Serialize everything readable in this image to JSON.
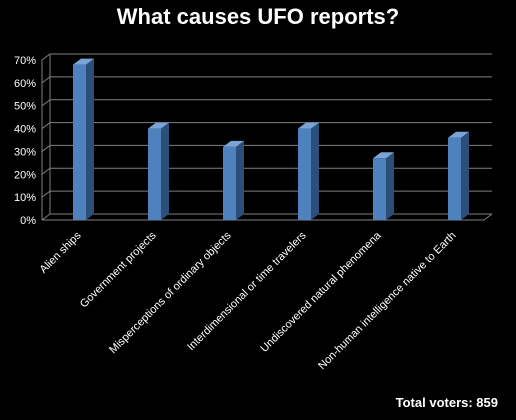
{
  "chart_data": {
    "type": "bar",
    "title": "What causes UFO reports?",
    "categories": [
      "Alien ships",
      "Government projects",
      "Misperceptions of ordinary objects",
      "Interdimensional or time travelers",
      "Undiscovered natural phenomena",
      "Non-human intelligence native to Earth"
    ],
    "values": [
      68,
      40,
      32,
      40,
      27,
      36
    ],
    "unit": "%",
    "ylim": [
      0,
      70
    ],
    "yticks": [
      "0%",
      "10%",
      "20%",
      "30%",
      "40%",
      "50%",
      "60%",
      "70%"
    ],
    "xlabel": "",
    "ylabel": "",
    "grid": true,
    "legend": "none",
    "colors": {
      "background": "#000000",
      "bar_front": "#4f81bd",
      "bar_side": "#2c4f7a",
      "bar_top": "#7aa3d6",
      "grid": "#808080",
      "text": "#ffffff"
    }
  },
  "footer": {
    "total_voters": "Total voters: 859"
  }
}
